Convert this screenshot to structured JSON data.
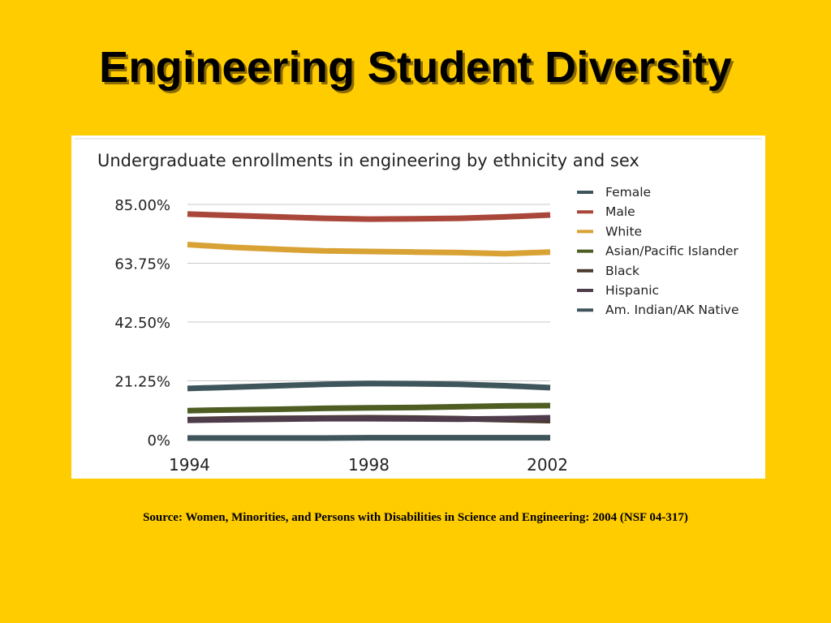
{
  "slide": {
    "title": "Engineering Student Diversity",
    "source": "Source: Women, Minorities, and Persons with Disabilities in Science and Engineering: 2004 (NSF 04-317)"
  },
  "colors": {
    "background": "#FFCC00",
    "panel": "#FFFFFF"
  },
  "chart_data": {
    "type": "line",
    "title": "Undergraduate enrollments in engineering by ethnicity and sex",
    "xlabel": "",
    "ylabel": "",
    "x": [
      1994,
      1995,
      1996,
      1997,
      1998,
      1999,
      2000,
      2001,
      2002
    ],
    "x_ticks": [
      "1994",
      "1998",
      "2002"
    ],
    "y_ticks": [
      "0%",
      "21.25%",
      "42.50%",
      "63.75%",
      "85.00%"
    ],
    "ylim": [
      0,
      85
    ],
    "grid": "horizontal",
    "legend_position": "right",
    "series": [
      {
        "name": "Female",
        "color": "#3E555B",
        "values": [
          18.5,
          19.0,
          19.5,
          20.0,
          20.3,
          20.2,
          20.0,
          19.5,
          18.8
        ]
      },
      {
        "name": "Male",
        "color": "#A9473A",
        "values": [
          81.5,
          81.0,
          80.5,
          80.0,
          79.7,
          79.8,
          80.0,
          80.5,
          81.2
        ]
      },
      {
        "name": "White",
        "color": "#D9A234",
        "values": [
          70.5,
          69.5,
          68.8,
          68.2,
          68.0,
          67.8,
          67.6,
          67.2,
          67.8
        ]
      },
      {
        "name": "Asian/Pacific Islander",
        "color": "#4E5E23",
        "values": [
          10.5,
          10.8,
          11.0,
          11.3,
          11.5,
          11.6,
          11.9,
          12.2,
          12.3
        ]
      },
      {
        "name": "Black",
        "color": "#4B3A2B",
        "values": [
          7.2,
          7.5,
          7.7,
          7.8,
          7.9,
          7.8,
          7.6,
          7.2,
          6.9
        ]
      },
      {
        "name": "Hispanic",
        "color": "#4F3C4B",
        "values": [
          7.0,
          7.2,
          7.4,
          7.6,
          7.6,
          7.5,
          7.4,
          7.6,
          7.9
        ]
      },
      {
        "name": "Am. Indian/AK Native",
        "color": "#3E555B",
        "values": [
          0.6,
          0.6,
          0.6,
          0.6,
          0.7,
          0.7,
          0.7,
          0.7,
          0.7
        ]
      }
    ]
  }
}
